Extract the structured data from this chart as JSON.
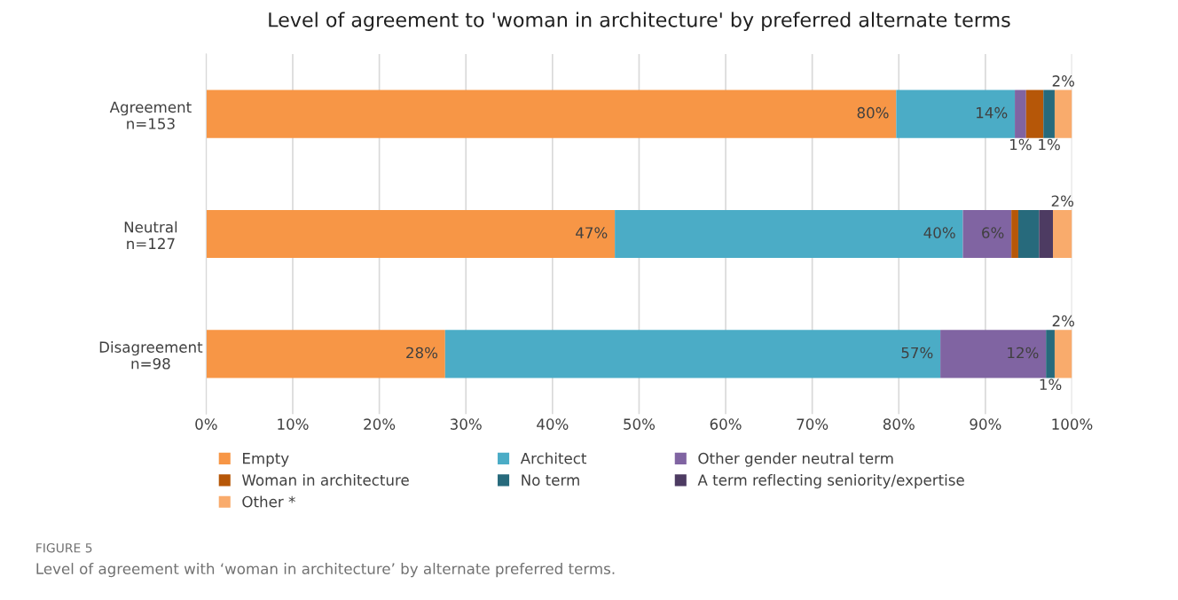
{
  "chart_data": {
    "type": "bar",
    "orientation": "horizontal",
    "stacked": true,
    "title": "Level of agreement to 'woman in architecture' by preferred alternate terms",
    "categories": [
      "Agreement\nn=153",
      "Neutral\nn=127",
      "Disagreement\nn=98"
    ],
    "xlim": [
      0,
      100
    ],
    "xticks": [
      {
        "value": 0,
        "label": "0%"
      },
      {
        "value": 10,
        "label": "10%"
      },
      {
        "value": 20,
        "label": "20%"
      },
      {
        "value": 30,
        "label": "30%"
      },
      {
        "value": 40,
        "label": "40%"
      },
      {
        "value": 50,
        "label": "50%"
      },
      {
        "value": 60,
        "label": "60%"
      },
      {
        "value": 70,
        "label": "70%"
      },
      {
        "value": 80,
        "label": "80%"
      },
      {
        "value": 90,
        "label": "90%"
      },
      {
        "value": 100,
        "label": "100%"
      }
    ],
    "grid": "x",
    "legend": "bottom",
    "series": [
      {
        "name": "Empty",
        "color": "#f79646",
        "values": [
          79.7,
          47.2,
          27.6
        ],
        "value_labels": [
          "80%",
          "47%",
          "28%"
        ]
      },
      {
        "name": "Architect",
        "color": "#4bacc6",
        "values": [
          13.7,
          40.2,
          57.2
        ],
        "value_labels": [
          "14%",
          "40%",
          "57%"
        ]
      },
      {
        "name": "Other gender neutral term",
        "color": "#8064a2",
        "values": [
          1.3,
          5.6,
          12.2
        ],
        "value_labels": [
          "1%",
          "6%",
          "12%"
        ]
      },
      {
        "name": "Woman in architecture",
        "color": "#b65708",
        "values": [
          2.0,
          0.8,
          0
        ],
        "value_labels": [
          null,
          null,
          null
        ]
      },
      {
        "name": "No term",
        "color": "#276a7c",
        "values": [
          1.3,
          2.4,
          1.0
        ],
        "value_labels": [
          "1%",
          null,
          "1%"
        ]
      },
      {
        "name": "A term reflecting seniority/expertise",
        "color": "#4d3b62",
        "values": [
          0,
          1.6,
          0
        ],
        "value_labels": [
          null,
          null,
          null
        ]
      },
      {
        "name": "Other *",
        "color": "#f9ab6c",
        "values": [
          2.0,
          2.2,
          2.0
        ],
        "value_labels": [
          "2%",
          "2%",
          "2%"
        ]
      }
    ],
    "annotations": [
      "FIGURE 5",
      "Level of agreement with ‘woman in architecture’ by alternate preferred terms."
    ]
  }
}
